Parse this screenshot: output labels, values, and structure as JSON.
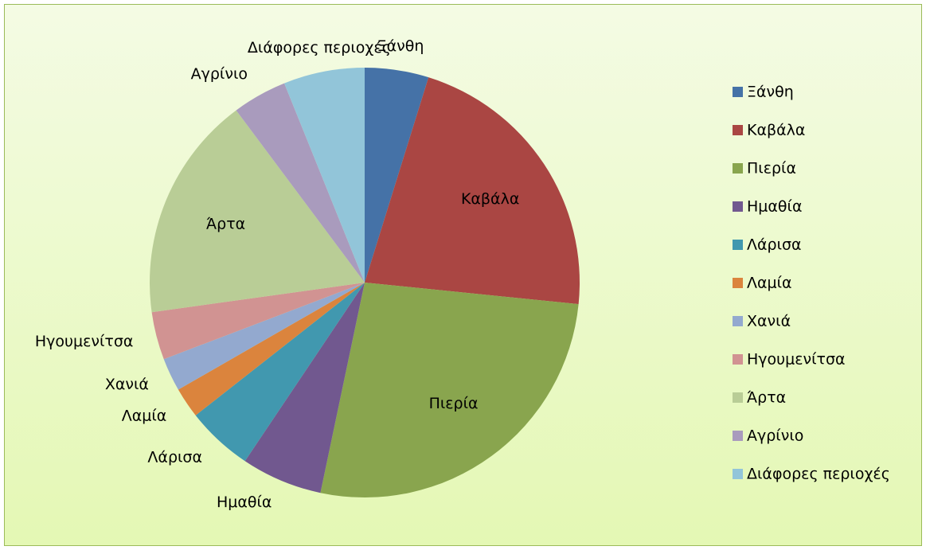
{
  "chart_data": {
    "type": "pie",
    "categories": [
      "Ξάνθη",
      "Καβάλα",
      "Πιερία",
      "Ημαθία",
      "Λάρισα",
      "Λαμία",
      "Χανιά",
      "Ηγουμενίτσα",
      "Άρτα",
      "Αγρίνιο",
      "Διάφορες περιοχές"
    ],
    "values": [
      4.8,
      21.8,
      26.7,
      6.1,
      5.0,
      2.3,
      2.5,
      3.6,
      17.0,
      4.1,
      6.1
    ],
    "colors": [
      "#4572a7",
      "#aa4643",
      "#89a54e",
      "#71588f",
      "#4198af",
      "#db843d",
      "#93a9cf",
      "#d19392",
      "#b9cd96",
      "#a99bbd",
      "#92c5d9"
    ],
    "legend": "right"
  }
}
